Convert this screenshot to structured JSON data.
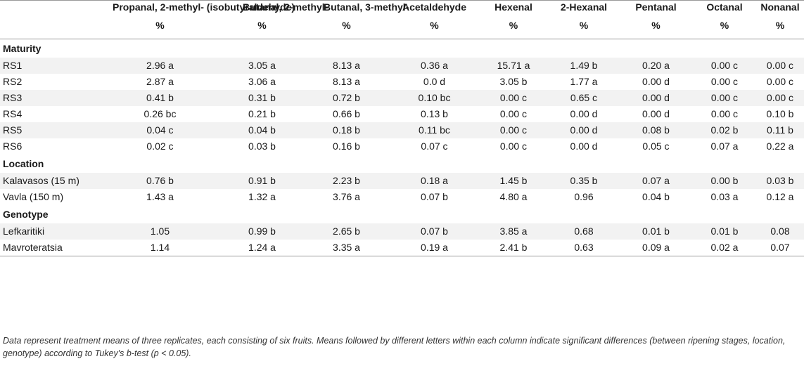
{
  "columns": [
    {
      "header": "Propanal, 2-methyl- (isobutyraldehyde)",
      "unit": "%"
    },
    {
      "header": "Butanal, 2-methyl-",
      "unit": "%"
    },
    {
      "header": "Butanal, 3-methyl-",
      "unit": "%"
    },
    {
      "header": "Acetaldehyde",
      "unit": "%"
    },
    {
      "header": "Hexenal",
      "unit": "%"
    },
    {
      "header": "2-Hexanal",
      "unit": "%"
    },
    {
      "header": "Pentanal",
      "unit": "%"
    },
    {
      "header": "Octanal",
      "unit": "%"
    },
    {
      "header": "Nonanal",
      "unit": "%"
    }
  ],
  "sections": [
    {
      "title": "Maturity",
      "rows": [
        {
          "label": "RS1",
          "values": [
            "2.96 a",
            "3.05 a",
            "8.13 a",
            "0.36 a",
            "15.71 a",
            "1.49 b",
            "0.20 a",
            "0.00 c",
            "0.00 c"
          ]
        },
        {
          "label": "RS2",
          "values": [
            "2.87 a",
            "3.06 a",
            "8.13 a",
            "0.0 d",
            "3.05 b",
            "1.77 a",
            "0.00 d",
            "0.00 c",
            "0.00 c"
          ]
        },
        {
          "label": "RS3",
          "values": [
            "0.41 b",
            "0.31 b",
            "0.72 b",
            "0.10 bc",
            "0.00 c",
            "0.65 c",
            "0.00 d",
            "0.00 c",
            "0.00 c"
          ]
        },
        {
          "label": "RS4",
          "values": [
            "0.26 bc",
            "0.21 b",
            "0.66 b",
            "0.13 b",
            "0.00 c",
            "0.00 d",
            "0.00 d",
            "0.00 c",
            "0.10 b"
          ]
        },
        {
          "label": "RS5",
          "values": [
            "0.04 c",
            "0.04 b",
            "0.18 b",
            "0.11 bc",
            "0.00 c",
            "0.00 d",
            "0.08 b",
            "0.02 b",
            "0.11 b"
          ]
        },
        {
          "label": "RS6",
          "values": [
            "0.02 c",
            "0.03 b",
            "0.16 b",
            "0.07 c",
            "0.00 c",
            "0.00 d",
            "0.05 c",
            "0.07 a",
            "0.22 a"
          ]
        }
      ]
    },
    {
      "title": "Location",
      "rows": [
        {
          "label": "Kalavasos (15 m)",
          "values": [
            "0.76 b",
            "0.91 b",
            "2.23 b",
            "0.18 a",
            "1.45 b",
            "0.35 b",
            "0.07 a",
            "0.00 b",
            "0.03 b"
          ]
        },
        {
          "label": "Vavla (150 m)",
          "values": [
            "1.43 a",
            "1.32 a",
            "3.76 a",
            "0.07 b",
            "4.80 a",
            "0.96",
            "0.04 b",
            "0.03 a",
            "0.12 a"
          ]
        }
      ]
    },
    {
      "title": "Genotype",
      "rows": [
        {
          "label": "Lefkaritiki",
          "values": [
            "1.05",
            "0.99 b",
            "2.65 b",
            "0.07 b",
            "3.85 a",
            "0.68",
            "0.01 b",
            "0.01 b",
            "0.08"
          ]
        },
        {
          "label": "Mavroteratsia",
          "values": [
            "1.14",
            "1.24 a",
            "3.35 a",
            "0.19 a",
            "2.41 b",
            "0.63",
            "0.09 a",
            "0.02 a",
            "0.07"
          ]
        }
      ]
    }
  ],
  "footnote": "Data represent treatment means of three replicates, each consisting of six fruits. Means followed by different letters within each column indicate significant differences (between ripening stages, location, genotype) according to Tukey's b-test (p < 0.05)."
}
